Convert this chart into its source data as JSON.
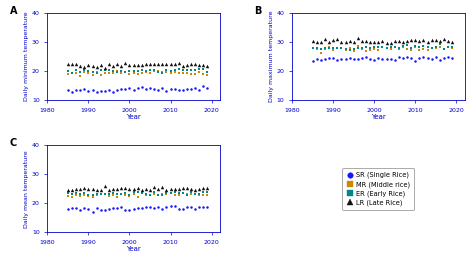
{
  "subplots": [
    {
      "label": "A",
      "ylabel": "Daily minimum temperature",
      "ylim": [
        10,
        40
      ],
      "xlim": [
        1980,
        2022
      ],
      "xticks": [
        1980,
        1990,
        2000,
        2010,
        2020
      ],
      "yticks": [
        10,
        20,
        30,
        40
      ],
      "series": {
        "SR": {
          "color": "#1515ff",
          "marker": "o",
          "base": 13.3,
          "noise": 0.5,
          "trend": 0.018
        },
        "MR": {
          "color": "#cc8800",
          "marker": "s",
          "base": 19.2,
          "noise": 0.4,
          "trend": 0.012
        },
        "ER": {
          "color": "#008888",
          "marker": "s",
          "base": 19.8,
          "noise": 0.4,
          "trend": 0.015
        },
        "LR": {
          "color": "#111111",
          "marker": "^",
          "base": 22.0,
          "noise": 0.35,
          "trend": 0.01
        }
      }
    },
    {
      "label": "B",
      "ylabel": "Daily maximum temperature",
      "ylim": [
        10,
        40
      ],
      "xlim": [
        1980,
        2022
      ],
      "xticks": [
        1980,
        1990,
        2000,
        2010,
        2020
      ],
      "yticks": [
        10,
        20,
        30,
        40
      ],
      "series": {
        "SR": {
          "color": "#1515ff",
          "marker": "o",
          "base": 24.3,
          "noise": 0.5,
          "trend": 0.015
        },
        "MR": {
          "color": "#cc8800",
          "marker": "s",
          "base": 27.5,
          "noise": 0.4,
          "trend": 0.012
        },
        "ER": {
          "color": "#008888",
          "marker": "s",
          "base": 27.8,
          "noise": 0.4,
          "trend": 0.012
        },
        "LR": {
          "color": "#111111",
          "marker": "^",
          "base": 30.2,
          "noise": 0.35,
          "trend": 0.008
        }
      }
    },
    {
      "label": "C",
      "ylabel": "Daily mean temperature",
      "ylim": [
        10,
        40
      ],
      "xlim": [
        1980,
        2022
      ],
      "xticks": [
        1980,
        1990,
        2000,
        2010,
        2020
      ],
      "yticks": [
        10,
        20,
        30,
        40
      ],
      "series": {
        "SR": {
          "color": "#1515ff",
          "marker": "o",
          "base": 18.0,
          "noise": 0.4,
          "trend": 0.018
        },
        "MR": {
          "color": "#cc8800",
          "marker": "s",
          "base": 22.8,
          "noise": 0.35,
          "trend": 0.012
        },
        "ER": {
          "color": "#008888",
          "marker": "s",
          "base": 23.2,
          "noise": 0.35,
          "trend": 0.012
        },
        "LR": {
          "color": "#111111",
          "marker": "^",
          "base": 24.8,
          "noise": 0.3,
          "trend": 0.01
        }
      }
    }
  ],
  "legend_entries": [
    {
      "label": "SR (Single Rice)",
      "color": "#1515ff",
      "marker": "o"
    },
    {
      "label": "MR (Middle rice)",
      "color": "#cc8800",
      "marker": "s"
    },
    {
      "label": "ER (Early Rice)",
      "color": "#008888",
      "marker": "s"
    },
    {
      "label": "LR (Late Rice)",
      "color": "#111111",
      "marker": "^"
    }
  ],
  "xlabel": "Year",
  "spine_color": "#0000cc",
  "label_color": "#0000cc",
  "tick_color": "#0000cc"
}
